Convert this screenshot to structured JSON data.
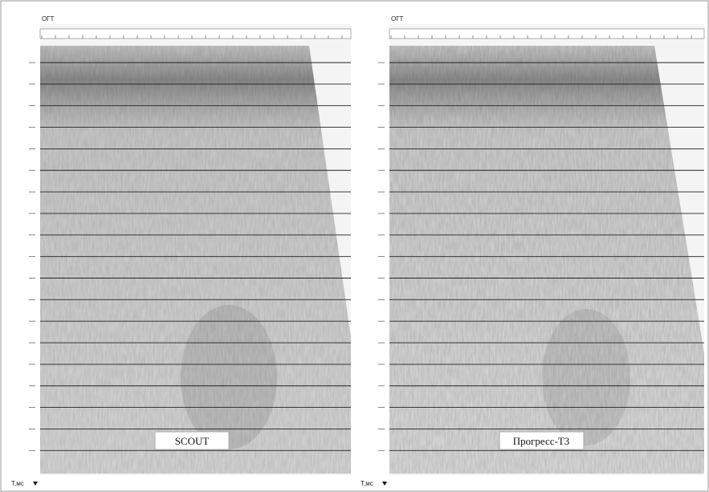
{
  "panels": [
    {
      "axis_label": "ОГТ",
      "time_label": "Т,мс",
      "method": "SCOUT"
    },
    {
      "axis_label": "ОГТ",
      "time_label": "Т,мс",
      "method": "Прогресс-Т3"
    }
  ]
}
